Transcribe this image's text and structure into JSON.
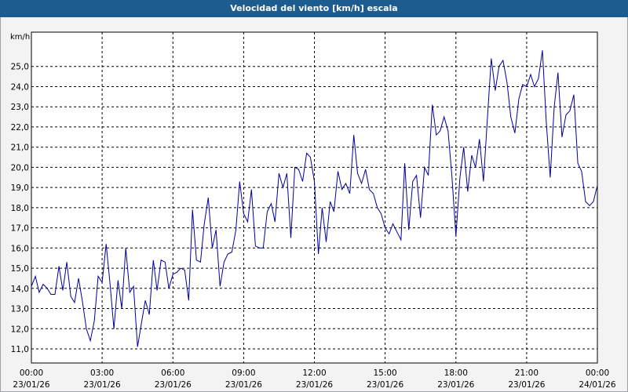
{
  "window": {
    "title": "Velocidad del viento [km/h] escala"
  },
  "colors": {
    "titlebar": "#1d5c8e",
    "line": "#00009c",
    "grid": "#000000",
    "background": "#ffffff"
  },
  "chart_data": {
    "type": "line",
    "title": "Velocidad del viento [km/h] escala",
    "ylabel": "km/h",
    "xlabel": "",
    "ylim": [
      10.3,
      26.7
    ],
    "xlim": [
      0,
      24
    ],
    "grid": true,
    "yticks": [
      {
        "v": 11,
        "label": "11,0"
      },
      {
        "v": 12,
        "label": "12,0"
      },
      {
        "v": 13,
        "label": "13,0"
      },
      {
        "v": 14,
        "label": "14,0"
      },
      {
        "v": 15,
        "label": "15,0"
      },
      {
        "v": 16,
        "label": "16,0"
      },
      {
        "v": 17,
        "label": "17,0"
      },
      {
        "v": 18,
        "label": "18,0"
      },
      {
        "v": 19,
        "label": "19,0"
      },
      {
        "v": 20,
        "label": "20,0"
      },
      {
        "v": 21,
        "label": "21,0"
      },
      {
        "v": 22,
        "label": "22,0"
      },
      {
        "v": 23,
        "label": "23,0"
      },
      {
        "v": 24,
        "label": "24,0"
      },
      {
        "v": 25,
        "label": "25,0"
      }
    ],
    "xticks": [
      {
        "h": 0,
        "time": "00:00",
        "date": "23/01/26"
      },
      {
        "h": 3,
        "time": "03:00",
        "date": "23/01/26"
      },
      {
        "h": 6,
        "time": "06:00",
        "date": "23/01/26"
      },
      {
        "h": 9,
        "time": "09:00",
        "date": "23/01/26"
      },
      {
        "h": 12,
        "time": "12:00",
        "date": "23/01/26"
      },
      {
        "h": 15,
        "time": "15:00",
        "date": "23/01/26"
      },
      {
        "h": 18,
        "time": "18:00",
        "date": "23/01/26"
      },
      {
        "h": 21,
        "time": "21:00",
        "date": "23/01/26"
      },
      {
        "h": 24,
        "time": "00:00",
        "date": "24/01/26"
      }
    ],
    "series": [
      {
        "values": [
          [
            0.0,
            14.1
          ],
          [
            0.17,
            14.6
          ],
          [
            0.33,
            13.8
          ],
          [
            0.5,
            14.2
          ],
          [
            0.67,
            14.0
          ],
          [
            0.83,
            13.7
          ],
          [
            1.0,
            13.7
          ],
          [
            1.17,
            15.1
          ],
          [
            1.33,
            13.9
          ],
          [
            1.5,
            15.3
          ],
          [
            1.67,
            13.6
          ],
          [
            1.83,
            13.3
          ],
          [
            2.0,
            14.5
          ],
          [
            2.17,
            13.3
          ],
          [
            2.33,
            12.0
          ],
          [
            2.5,
            11.4
          ],
          [
            2.67,
            12.4
          ],
          [
            2.83,
            14.6
          ],
          [
            3.0,
            14.3
          ],
          [
            3.17,
            16.2
          ],
          [
            3.33,
            14.3
          ],
          [
            3.5,
            12.0
          ],
          [
            3.67,
            14.4
          ],
          [
            3.83,
            13.0
          ],
          [
            4.0,
            16.0
          ],
          [
            4.17,
            13.8
          ],
          [
            4.33,
            14.1
          ],
          [
            4.5,
            11.1
          ],
          [
            4.67,
            12.3
          ],
          [
            4.83,
            13.4
          ],
          [
            5.0,
            12.7
          ],
          [
            5.17,
            15.4
          ],
          [
            5.33,
            13.9
          ],
          [
            5.5,
            15.4
          ],
          [
            5.67,
            15.3
          ],
          [
            5.83,
            14.0
          ],
          [
            6.0,
            14.7
          ],
          [
            6.17,
            14.8
          ],
          [
            6.33,
            15.0
          ],
          [
            6.5,
            14.9
          ],
          [
            6.67,
            13.4
          ],
          [
            6.83,
            17.9
          ],
          [
            7.0,
            15.4
          ],
          [
            7.17,
            15.3
          ],
          [
            7.33,
            17.2
          ],
          [
            7.5,
            18.5
          ],
          [
            7.67,
            16.0
          ],
          [
            7.83,
            16.9
          ],
          [
            8.0,
            14.1
          ],
          [
            8.17,
            15.3
          ],
          [
            8.33,
            15.7
          ],
          [
            8.5,
            15.8
          ],
          [
            8.67,
            16.9
          ],
          [
            8.83,
            19.3
          ],
          [
            9.0,
            17.7
          ],
          [
            9.17,
            17.3
          ],
          [
            9.33,
            18.9
          ],
          [
            9.5,
            16.1
          ],
          [
            9.67,
            16.0
          ],
          [
            9.83,
            16.0
          ],
          [
            10.0,
            17.8
          ],
          [
            10.17,
            18.2
          ],
          [
            10.33,
            17.3
          ],
          [
            10.5,
            19.7
          ],
          [
            10.67,
            19.0
          ],
          [
            10.83,
            19.7
          ],
          [
            11.0,
            16.5
          ],
          [
            11.17,
            20.0
          ],
          [
            11.33,
            19.9
          ],
          [
            11.5,
            19.3
          ],
          [
            11.67,
            20.7
          ],
          [
            11.83,
            20.5
          ],
          [
            12.0,
            19.3
          ],
          [
            12.17,
            15.7
          ],
          [
            12.33,
            18.0
          ],
          [
            12.5,
            16.3
          ],
          [
            12.67,
            18.3
          ],
          [
            12.83,
            17.8
          ],
          [
            13.0,
            19.8
          ],
          [
            13.17,
            18.9
          ],
          [
            13.33,
            19.2
          ],
          [
            13.5,
            18.7
          ],
          [
            13.67,
            21.6
          ],
          [
            13.83,
            19.7
          ],
          [
            14.0,
            19.2
          ],
          [
            14.17,
            19.9
          ],
          [
            14.33,
            18.9
          ],
          [
            14.5,
            18.7
          ],
          [
            14.67,
            18.0
          ],
          [
            14.83,
            17.7
          ],
          [
            15.0,
            17.0
          ],
          [
            15.17,
            16.7
          ],
          [
            15.33,
            17.2
          ],
          [
            15.5,
            16.8
          ],
          [
            15.67,
            16.4
          ],
          [
            15.83,
            20.2
          ],
          [
            16.0,
            16.9
          ],
          [
            16.17,
            19.3
          ],
          [
            16.33,
            19.6
          ],
          [
            16.5,
            17.5
          ],
          [
            16.67,
            20.0
          ],
          [
            16.83,
            19.6
          ],
          [
            17.0,
            23.1
          ],
          [
            17.17,
            21.6
          ],
          [
            17.33,
            21.8
          ],
          [
            17.5,
            22.5
          ],
          [
            17.67,
            21.8
          ],
          [
            17.83,
            19.6
          ],
          [
            18.0,
            16.6
          ],
          [
            18.17,
            19.5
          ],
          [
            18.33,
            21.0
          ],
          [
            18.5,
            18.8
          ],
          [
            18.67,
            20.6
          ],
          [
            18.83,
            20.0
          ],
          [
            19.0,
            21.4
          ],
          [
            19.17,
            19.3
          ],
          [
            19.33,
            22.3
          ],
          [
            19.5,
            25.4
          ],
          [
            19.67,
            23.8
          ],
          [
            19.83,
            25.0
          ],
          [
            20.0,
            25.3
          ],
          [
            20.17,
            24.2
          ],
          [
            20.33,
            22.5
          ],
          [
            20.5,
            21.7
          ],
          [
            20.67,
            23.4
          ],
          [
            20.83,
            24.1
          ],
          [
            21.0,
            24.0
          ],
          [
            21.17,
            24.6
          ],
          [
            21.33,
            24.0
          ],
          [
            21.5,
            24.4
          ],
          [
            21.67,
            25.8
          ],
          [
            21.83,
            22.3
          ],
          [
            22.0,
            19.5
          ],
          [
            22.17,
            23.0
          ],
          [
            22.33,
            24.7
          ],
          [
            22.5,
            21.5
          ],
          [
            22.67,
            22.6
          ],
          [
            22.83,
            22.8
          ],
          [
            23.0,
            23.6
          ],
          [
            23.17,
            20.2
          ],
          [
            23.33,
            19.8
          ],
          [
            23.5,
            18.3
          ],
          [
            23.67,
            18.1
          ],
          [
            23.83,
            18.3
          ],
          [
            24.0,
            19.1
          ]
        ]
      }
    ]
  }
}
